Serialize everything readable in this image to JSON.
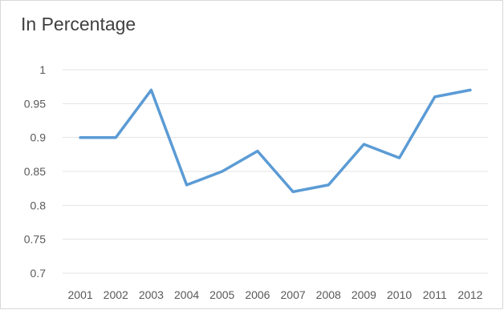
{
  "chart_data": {
    "type": "line",
    "title": "In Percentage",
    "xlabel": "",
    "ylabel": "",
    "x": [
      "2001",
      "2002",
      "2003",
      "2004",
      "2005",
      "2006",
      "2007",
      "2008",
      "2009",
      "2010",
      "2011",
      "2012"
    ],
    "series": [
      {
        "values": [
          0.9,
          0.9,
          0.97,
          0.83,
          0.85,
          0.88,
          0.82,
          0.83,
          0.89,
          0.87,
          0.96,
          0.97
        ]
      }
    ],
    "ylim": [
      0.7,
      1
    ],
    "yticks": [
      "0.7",
      "0.75",
      "0.8",
      "0.85",
      "0.9",
      "0.95",
      "1"
    ],
    "grid": true,
    "line_color": "#5b9bd5",
    "grid_color": "#e3e3e3"
  }
}
